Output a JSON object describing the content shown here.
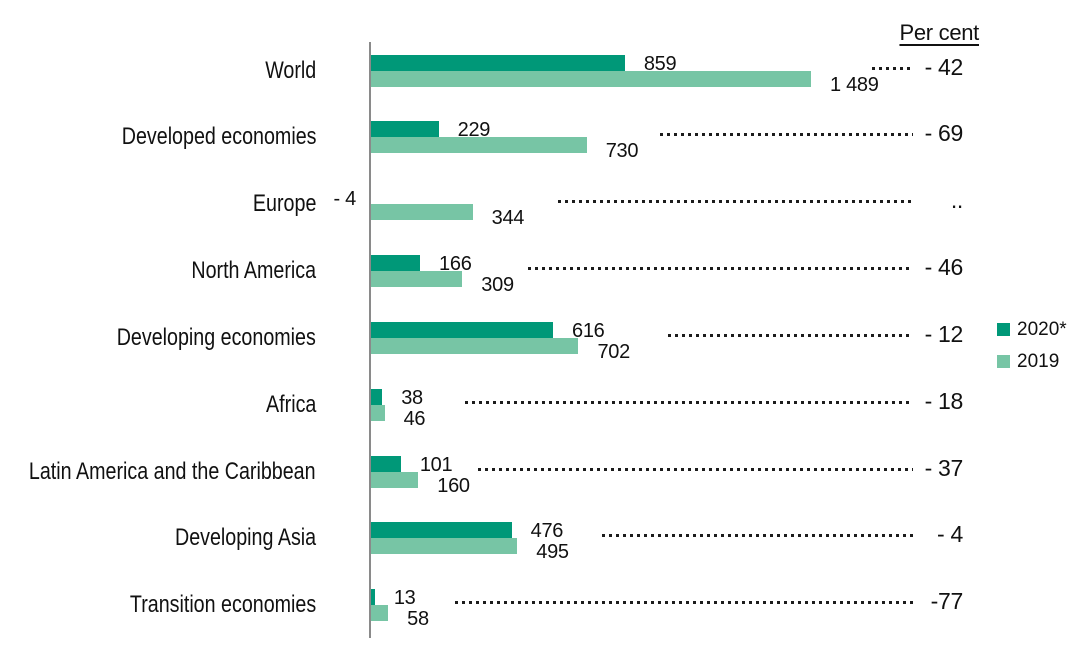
{
  "chart_data": {
    "type": "bar",
    "orientation": "horizontal",
    "categories": [
      "World",
      "Developed economies",
      "Europe",
      "North America",
      "Developing economies",
      "Africa",
      "Latin America and the Caribbean",
      "Developing Asia",
      "Transition economies"
    ],
    "series": [
      {
        "name": "2020*",
        "color": "#009878",
        "values": [
          859,
          229,
          -4,
          166,
          616,
          38,
          101,
          476,
          13
        ],
        "value_labels": [
          "859",
          "229",
          "- 4",
          "166",
          "616",
          "38",
          "101",
          "476",
          "13"
        ]
      },
      {
        "name": "2019",
        "color": "#77c5a5",
        "values": [
          1489,
          730,
          344,
          309,
          702,
          46,
          160,
          495,
          58
        ],
        "value_labels": [
          "1 489",
          "730",
          "344",
          "309",
          "702",
          "46",
          "160",
          "495",
          "58"
        ]
      }
    ],
    "percent_column": {
      "title": "Per cent",
      "values": [
        "- 42",
        "- 69",
        "..",
        "- 46",
        "- 12",
        "- 18",
        "- 37",
        "- 4",
        "-77"
      ]
    },
    "xlim": [
      0,
      1500
    ],
    "grid": false,
    "legend_position": "right",
    "axis_color": "#8a8a8a",
    "leader_style": "dotted"
  }
}
